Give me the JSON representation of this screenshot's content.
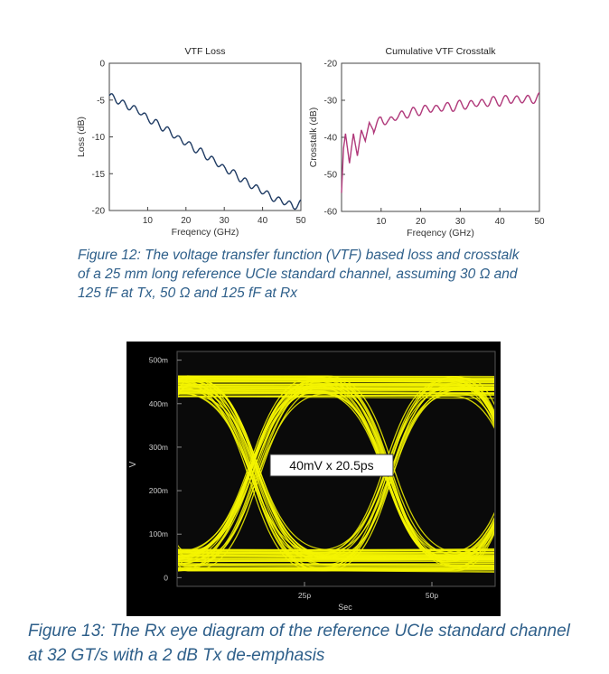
{
  "chart_data": [
    {
      "type": "line",
      "title": "VTF Loss",
      "xlabel": "Freqency (GHz)",
      "ylabel": "Loss (dB)",
      "xlim": [
        0,
        50
      ],
      "ylim": [
        -20,
        0
      ],
      "x_ticks": [
        "10",
        "20",
        "30",
        "40",
        "50"
      ],
      "y_ticks": [
        "0",
        "-5",
        "-10",
        "-15",
        "-20"
      ],
      "grid": false,
      "series": [
        {
          "color": "#1f3b63",
          "x": [
            0,
            2,
            4,
            6,
            8,
            10,
            12,
            14,
            16,
            18,
            20,
            22,
            24,
            26,
            28,
            30,
            32,
            34,
            36,
            38,
            40,
            42,
            44,
            46,
            48,
            50
          ],
          "y": [
            -4.4,
            -5.0,
            -5.6,
            -6.1,
            -6.5,
            -7.6,
            -8.0,
            -8.8,
            -9.3,
            -10.3,
            -10.7,
            -11.6,
            -12.0,
            -12.9,
            -13.4,
            -14.4,
            -14.7,
            -15.6,
            -16.2,
            -16.9,
            -17.3,
            -18.1,
            -18.6,
            -18.8,
            -19.5,
            -19.0
          ]
        }
      ]
    },
    {
      "type": "line",
      "title": "Cumulative VTF Crosstalk",
      "xlabel": "Freqency (GHz)",
      "ylabel": "Crosstalk (dB)",
      "xlim": [
        0,
        50
      ],
      "ylim": [
        -60,
        -20
      ],
      "x_ticks": [
        "10",
        "20",
        "30",
        "40",
        "50"
      ],
      "y_ticks": [
        "-20",
        "-30",
        "-40",
        "-50",
        "-60"
      ],
      "grid": false,
      "series": [
        {
          "color": "#b0387a",
          "x": [
            0,
            0.5,
            1,
            1.5,
            2,
            3,
            4,
            5,
            6,
            7,
            8,
            10,
            12,
            14,
            16,
            18,
            20,
            22,
            24,
            26,
            28,
            30,
            32,
            34,
            36,
            38,
            40,
            42,
            44,
            46,
            48,
            50
          ],
          "y": [
            -55,
            -43,
            -39,
            -43,
            -47,
            -39,
            -45,
            -38,
            -41,
            -36,
            -38,
            -35,
            -36,
            -34,
            -34,
            -33,
            -33,
            -32,
            -32.5,
            -31.5,
            -32,
            -31,
            -31.5,
            -30.5,
            -31,
            -30,
            -30.5,
            -29.5,
            -30,
            -29.5,
            -30,
            -29
          ]
        }
      ]
    },
    {
      "type": "eye-diagram",
      "xlabel": "Sec",
      "ylabel": "V",
      "x_ticks": [
        "25p",
        "50p"
      ],
      "y_ticks": [
        "500m",
        "400m",
        "300m",
        "200m",
        "100m",
        "0"
      ],
      "ylim": [
        -0.02,
        0.52
      ],
      "annotation": "40mV x 20.5ps",
      "trace_color": "#f5f500",
      "background_color": "#000000"
    }
  ],
  "captions": {
    "fig12": [
      "Figure 12: The voltage transfer function (VTF) based loss and crosstalk",
      "of a 25 mm long reference UCIe standard channel, assuming 30 Ω and",
      "125 fF at Tx, 50 Ω and 125 fF at Rx"
    ],
    "fig13": [
      "Figure 13: The Rx eye diagram of the reference UCIe standard channel",
      "at 32 GT/s with a 2 dB Tx de-emphasis"
    ]
  }
}
